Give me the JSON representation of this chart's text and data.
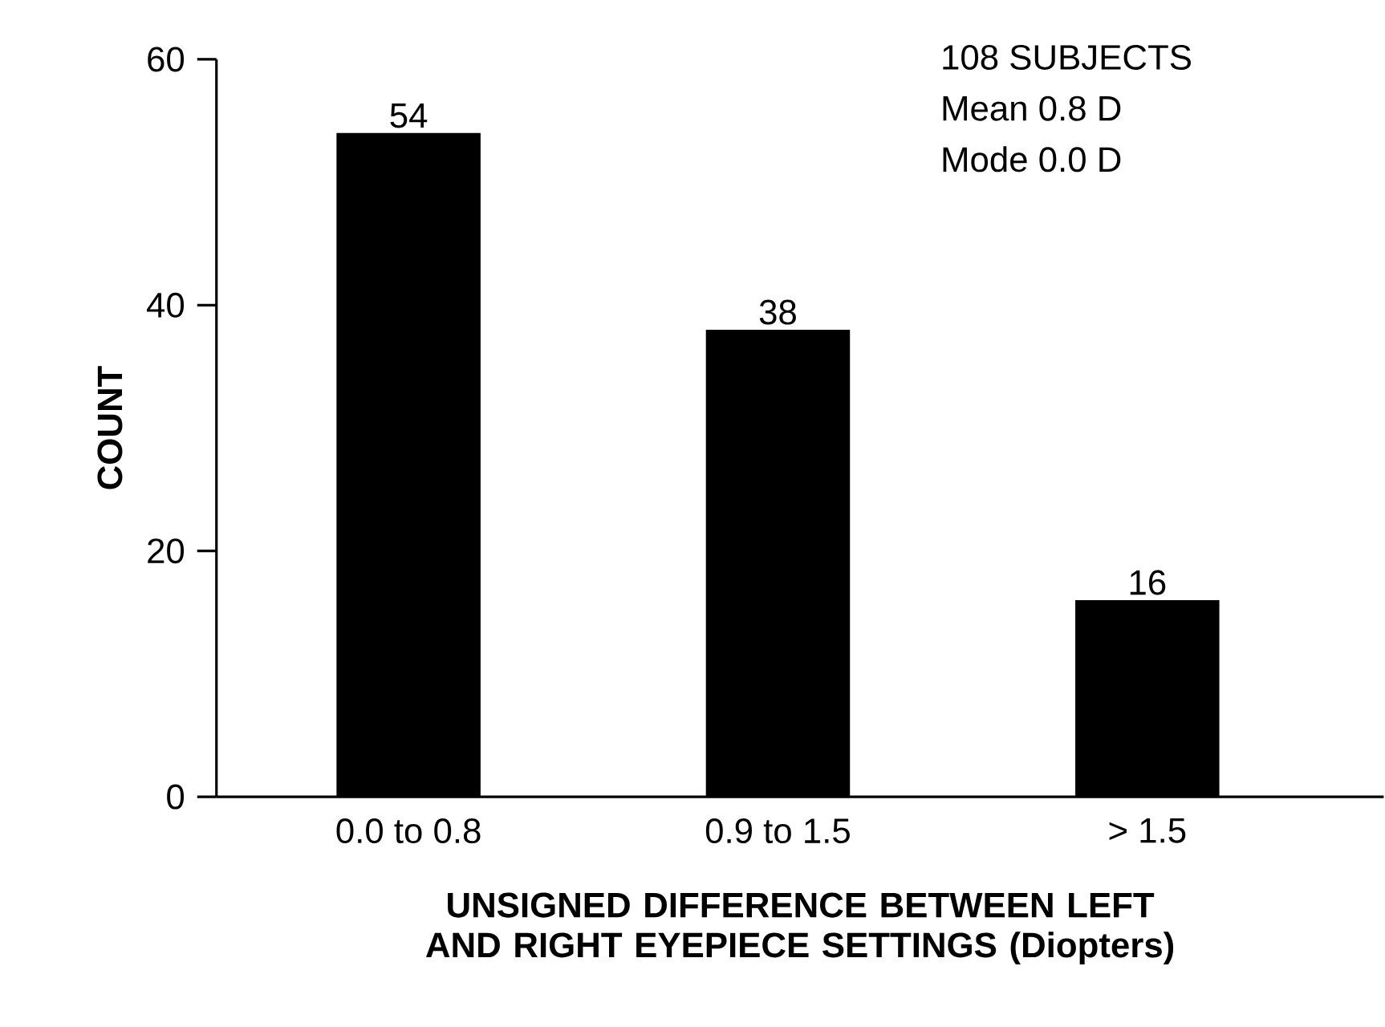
{
  "chart_data": {
    "type": "bar",
    "categories": [
      "0.0 to 0.8",
      "0.9 to 1.5",
      "> 1.5"
    ],
    "values": [
      54,
      38,
      16
    ],
    "color": "#000000",
    "ylabel": "COUNT",
    "xlabel": "UNSIGNED DIFFERENCE BETWEEN LEFT AND RIGHT EYEPIECE SETTINGS (Diopters)",
    "ylim": [
      0,
      60
    ],
    "yticks": [
      0,
      20,
      40,
      60
    ],
    "data_labels": true,
    "grid": false,
    "annotations": [
      "108 SUBJECTS",
      "Mean    0.8 D",
      "Mode    0.0 D"
    ]
  }
}
